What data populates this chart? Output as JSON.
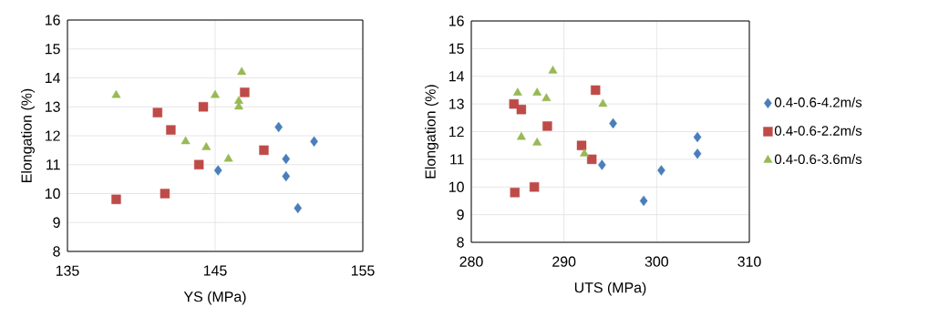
{
  "chart_data": [
    {
      "type": "scatter",
      "xlabel": "YS (MPa)",
      "ylabel": "Elongation (%)",
      "xlim": [
        135,
        155
      ],
      "xticks": [
        135,
        145,
        155
      ],
      "ylim": [
        8,
        16
      ],
      "yticks": [
        8,
        9,
        10,
        11,
        12,
        13,
        14,
        15,
        16
      ],
      "grid": true,
      "legend": false,
      "series": [
        {
          "color": "#4a7ebb",
          "marker": "diamond",
          "x": [
            145.2,
            149.3,
            149.8,
            149.8,
            150.6,
            151.7
          ],
          "values": [
            10.8,
            12.3,
            11.2,
            10.6,
            9.5,
            11.8
          ]
        },
        {
          "color": "#be4b48",
          "marker": "square",
          "x": [
            138.3,
            141.1,
            142.0,
            141.6,
            143.9,
            144.2,
            147.0,
            148.3
          ],
          "values": [
            9.8,
            12.8,
            12.2,
            10.0,
            11.0,
            13.0,
            13.5,
            11.5
          ]
        },
        {
          "color": "#98b954",
          "marker": "triangle",
          "x": [
            138.3,
            143.0,
            144.4,
            145.0,
            145.9,
            146.6,
            146.6,
            146.8
          ],
          "values": [
            13.4,
            11.8,
            11.6,
            13.4,
            11.2,
            13.2,
            13.0,
            14.2
          ]
        }
      ]
    },
    {
      "type": "scatter",
      "xlabel": "UTS (MPa)",
      "ylabel": "Elongation (%)",
      "xlim": [
        280,
        310
      ],
      "xticks": [
        280,
        290,
        300,
        310
      ],
      "ylim": [
        8,
        16
      ],
      "yticks": [
        8,
        9,
        10,
        11,
        12,
        13,
        14,
        15,
        16
      ],
      "grid": true,
      "legend": "right",
      "series": [
        {
          "name": "0.4-0.6-4.2m/s",
          "color": "#4a7ebb",
          "marker": "diamond",
          "x": [
            295.3,
            294.1,
            298.6,
            300.5,
            304.4,
            304.4
          ],
          "values": [
            12.3,
            10.8,
            9.5,
            10.6,
            11.8,
            11.2
          ]
        },
        {
          "name": "0.4-0.6-2.2m/s",
          "color": "#be4b48",
          "marker": "square",
          "x": [
            284.6,
            285.4,
            284.7,
            286.8,
            288.2,
            291.9,
            293.0,
            293.4
          ],
          "values": [
            13.0,
            12.8,
            9.8,
            10.0,
            12.2,
            11.5,
            11.0,
            13.5
          ]
        },
        {
          "name": "0.4-0.6-3.6m/s",
          "color": "#98b954",
          "marker": "triangle",
          "x": [
            285.0,
            285.4,
            287.1,
            287.1,
            288.1,
            288.8,
            292.2,
            294.2
          ],
          "values": [
            13.4,
            11.8,
            13.4,
            11.6,
            13.2,
            14.2,
            11.2,
            13.0
          ]
        }
      ]
    }
  ]
}
